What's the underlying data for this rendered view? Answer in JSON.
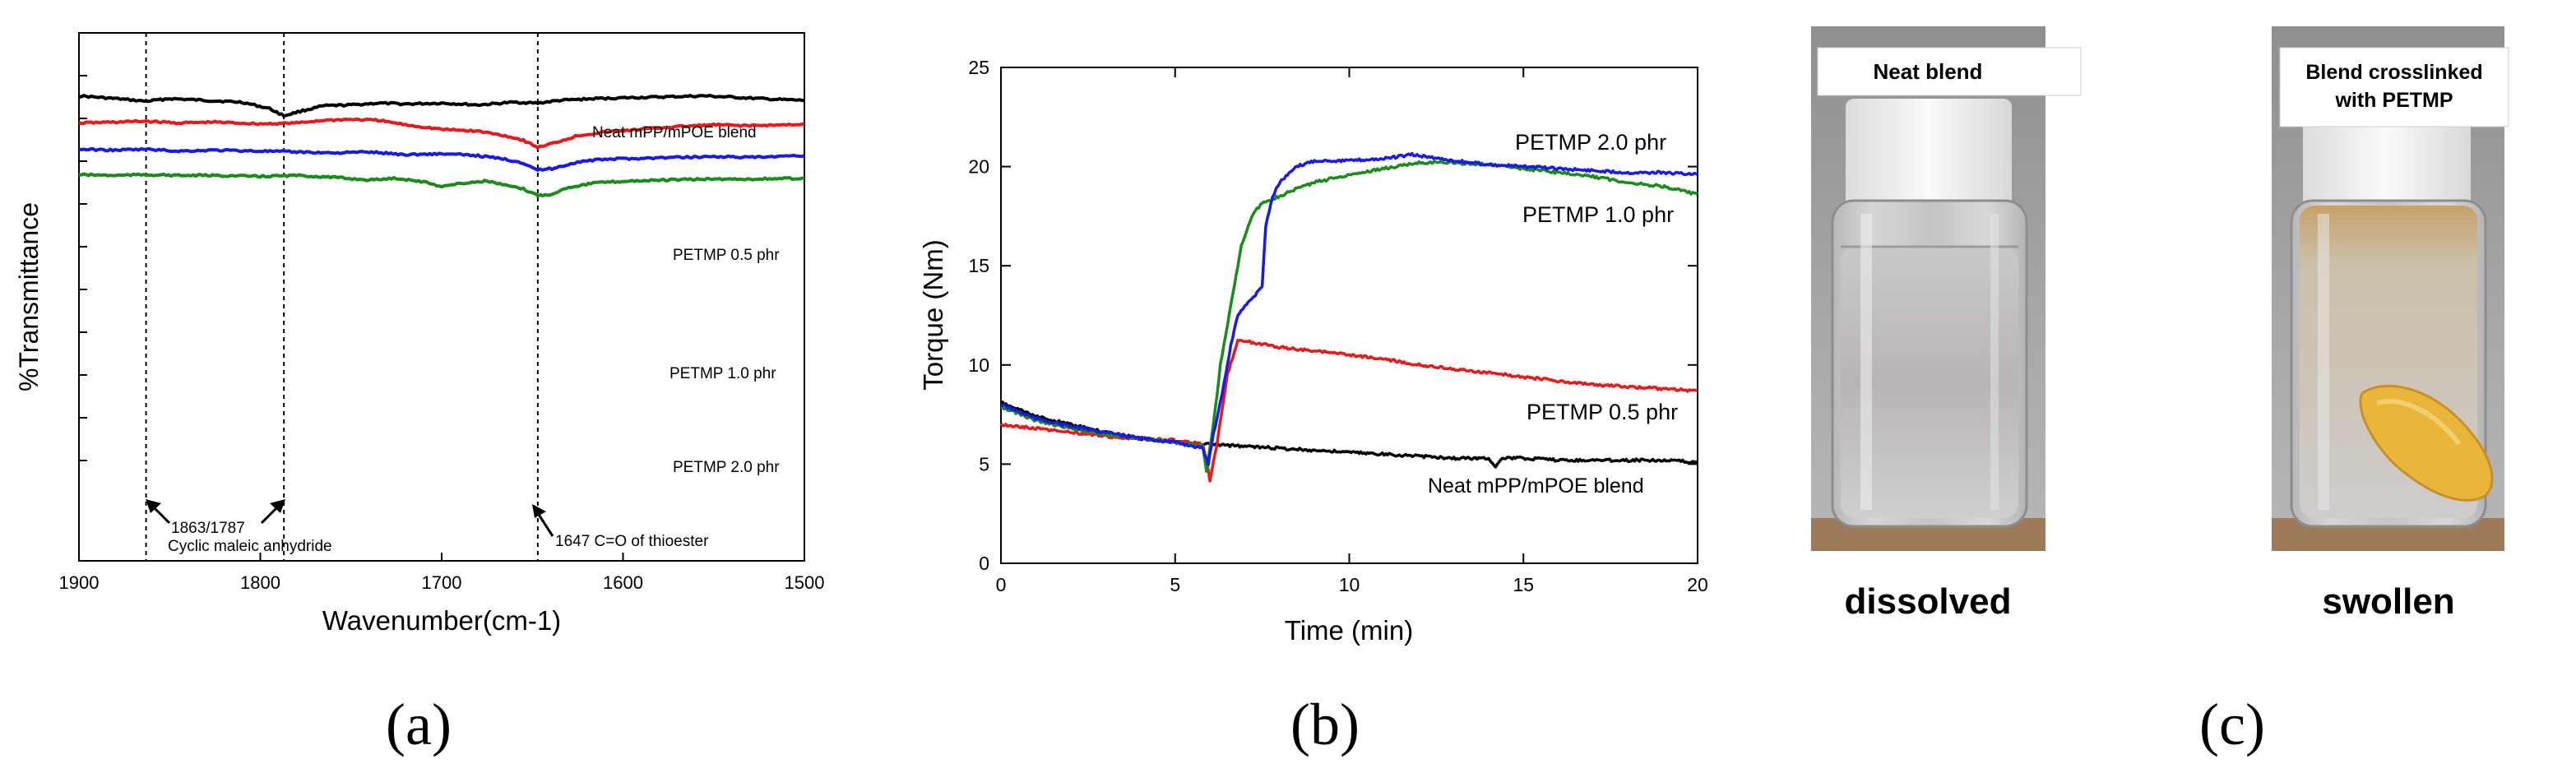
{
  "colors": {
    "black": "#000000",
    "red": "#e8191a",
    "blue": "#1a1ae8",
    "green": "#1a8c1a"
  },
  "chart_data": [
    {
      "panel": "(a)",
      "type": "line",
      "title": "",
      "xlabel": "Wavenumber(cm-1)",
      "ylabel": "%Transmittance",
      "xlim": [
        1900,
        1500
      ],
      "x_ticks": [
        "1900",
        "1800",
        "1700",
        "1600",
        "1500"
      ],
      "series": [
        {
          "name": "Neat mPP/mPOE blend",
          "color": "#000000",
          "points": [
            [
              1900,
              94
            ],
            [
              1880,
              91
            ],
            [
              1863,
              88
            ],
            [
              1850,
              91
            ],
            [
              1830,
              89
            ],
            [
              1810,
              87
            ],
            [
              1795,
              80
            ],
            [
              1787,
              72
            ],
            [
              1778,
              77
            ],
            [
              1765,
              83
            ],
            [
              1750,
              84
            ],
            [
              1735,
              86
            ],
            [
              1720,
              85
            ],
            [
              1700,
              86
            ],
            [
              1680,
              84
            ],
            [
              1660,
              87
            ],
            [
              1647,
              86
            ],
            [
              1635,
              89
            ],
            [
              1615,
              91
            ],
            [
              1595,
              92
            ],
            [
              1575,
              93
            ],
            [
              1555,
              94
            ],
            [
              1535,
              92
            ],
            [
              1515,
              90
            ],
            [
              1500,
              89
            ]
          ]
        },
        {
          "name": "PETMP 0.5 phr",
          "color": "#e8191a",
          "points": [
            [
              1900,
              64
            ],
            [
              1880,
              65
            ],
            [
              1863,
              66
            ],
            [
              1845,
              64
            ],
            [
              1825,
              65
            ],
            [
              1800,
              63
            ],
            [
              1780,
              64
            ],
            [
              1765,
              67
            ],
            [
              1750,
              68
            ],
            [
              1735,
              67
            ],
            [
              1720,
              62
            ],
            [
              1700,
              57
            ],
            [
              1680,
              55
            ],
            [
              1665,
              50
            ],
            [
              1655,
              45
            ],
            [
              1647,
              37
            ],
            [
              1638,
              42
            ],
            [
              1625,
              50
            ],
            [
              1610,
              54
            ],
            [
              1590,
              57
            ],
            [
              1570,
              60
            ],
            [
              1550,
              62
            ],
            [
              1530,
              61
            ],
            [
              1510,
              62
            ],
            [
              1500,
              63
            ]
          ]
        },
        {
          "name": "PETMP 1.0 phr",
          "color": "#1a1ae8",
          "points": [
            [
              1900,
              35
            ],
            [
              1880,
              34
            ],
            [
              1863,
              35
            ],
            [
              1845,
              33
            ],
            [
              1825,
              34
            ],
            [
              1800,
              33
            ],
            [
              1780,
              32
            ],
            [
              1760,
              31
            ],
            [
              1740,
              32
            ],
            [
              1720,
              29
            ],
            [
              1700,
              30
            ],
            [
              1680,
              28
            ],
            [
              1665,
              24
            ],
            [
              1655,
              20
            ],
            [
              1647,
              12
            ],
            [
              1638,
              14
            ],
            [
              1625,
              21
            ],
            [
              1610,
              24
            ],
            [
              1590,
              25
            ],
            [
              1570,
              26
            ],
            [
              1550,
              27
            ],
            [
              1530,
              26
            ],
            [
              1510,
              27
            ],
            [
              1500,
              28
            ]
          ]
        },
        {
          "name": "PETMP 2.0 phr",
          "color": "#1a8c1a",
          "points": [
            [
              1900,
              7
            ],
            [
              1880,
              6
            ],
            [
              1863,
              7
            ],
            [
              1845,
              6
            ],
            [
              1825,
              6
            ],
            [
              1800,
              5
            ],
            [
              1780,
              6
            ],
            [
              1760,
              4
            ],
            [
              1740,
              1
            ],
            [
              1725,
              3
            ],
            [
              1710,
              -1
            ],
            [
              1700,
              -6
            ],
            [
              1690,
              -3
            ],
            [
              1675,
              0
            ],
            [
              1665,
              -5
            ],
            [
              1655,
              -9
            ],
            [
              1647,
              -16
            ],
            [
              1640,
              -15
            ],
            [
              1630,
              -7
            ],
            [
              1615,
              -2
            ],
            [
              1595,
              0
            ],
            [
              1575,
              1
            ],
            [
              1555,
              2
            ],
            [
              1530,
              2
            ],
            [
              1500,
              3
            ]
          ]
        }
      ],
      "reference_lines": [
        1863,
        1787,
        1647
      ],
      "annotations": [
        {
          "text": "1863/1787",
          "x": 1863
        },
        {
          "text": "Cyclic maleic anhydride",
          "x": 1863
        },
        {
          "text": "1647 C=O of thioester",
          "x": 1647
        }
      ]
    },
    {
      "panel": "(b)",
      "type": "line",
      "title": "",
      "xlabel": "Time (min)",
      "ylabel": "Torque (Nm)",
      "xlim": [
        0,
        20
      ],
      "ylim": [
        0,
        25
      ],
      "x_ticks": [
        "0",
        "5",
        "10",
        "15",
        "20"
      ],
      "y_ticks": [
        "0",
        "5",
        "10",
        "15",
        "20",
        "25"
      ],
      "series": [
        {
          "name": "Neat mPP/mPOE blend",
          "color": "#000000",
          "points": [
            [
              0,
              8.1
            ],
            [
              1,
              7.4
            ],
            [
              2,
              7.0
            ],
            [
              3,
              6.6
            ],
            [
              4,
              6.3
            ],
            [
              5,
              6.1
            ],
            [
              6,
              6.0
            ],
            [
              7,
              5.9
            ],
            [
              8,
              5.8
            ],
            [
              9,
              5.7
            ],
            [
              10,
              5.6
            ],
            [
              11,
              5.5
            ],
            [
              12,
              5.4
            ],
            [
              13,
              5.3
            ],
            [
              14,
              5.3
            ],
            [
              14.2,
              4.9
            ],
            [
              14.4,
              5.3
            ],
            [
              15,
              5.3
            ],
            [
              16,
              5.2
            ],
            [
              17,
              5.2
            ],
            [
              18,
              5.2
            ],
            [
              19,
              5.2
            ],
            [
              20,
              5.1
            ]
          ]
        },
        {
          "name": "PETMP 0.5 phr",
          "color": "#e8191a",
          "points": [
            [
              0,
              7.0
            ],
            [
              1,
              6.8
            ],
            [
              2,
              6.6
            ],
            [
              3,
              6.4
            ],
            [
              4,
              6.3
            ],
            [
              5,
              6.2
            ],
            [
              5.8,
              6.0
            ],
            [
              6.0,
              4.2
            ],
            [
              6.2,
              6.0
            ],
            [
              6.5,
              9.5
            ],
            [
              6.8,
              11.2
            ],
            [
              7,
              11.2
            ],
            [
              8,
              10.9
            ],
            [
              9,
              10.7
            ],
            [
              10,
              10.5
            ],
            [
              11,
              10.3
            ],
            [
              12,
              10.0
            ],
            [
              13,
              9.8
            ],
            [
              14,
              9.6
            ],
            [
              15,
              9.4
            ],
            [
              16,
              9.2
            ],
            [
              17,
              9.0
            ],
            [
              18,
              8.9
            ],
            [
              19,
              8.8
            ],
            [
              20,
              8.7
            ]
          ]
        },
        {
          "name": "PETMP 1.0 phr",
          "color": "#1a1ae8",
          "points": [
            [
              0,
              8.0
            ],
            [
              1,
              7.3
            ],
            [
              2,
              6.9
            ],
            [
              3,
              6.6
            ],
            [
              4,
              6.3
            ],
            [
              5,
              6.1
            ],
            [
              5.8,
              5.8
            ],
            [
              5.95,
              5.0
            ],
            [
              6.1,
              6.5
            ],
            [
              6.4,
              9.0
            ],
            [
              6.6,
              11.0
            ],
            [
              6.8,
              12.5
            ],
            [
              7,
              13.0
            ],
            [
              7.3,
              13.5
            ],
            [
              7.5,
              14.0
            ],
            [
              7.6,
              17.0
            ],
            [
              7.8,
              18.5
            ],
            [
              8,
              19.2
            ],
            [
              8.5,
              20.0
            ],
            [
              9,
              20.3
            ],
            [
              10,
              20.3
            ],
            [
              11,
              20.4
            ],
            [
              11.8,
              20.6
            ],
            [
              13,
              20.3
            ],
            [
              14,
              20.1
            ],
            [
              15,
              20.0
            ],
            [
              16,
              19.9
            ],
            [
              17,
              19.8
            ],
            [
              18,
              19.7
            ],
            [
              19,
              19.7
            ],
            [
              20,
              19.6
            ]
          ]
        },
        {
          "name": "PETMP 2.0 phr",
          "color": "#1a8c1a",
          "points": [
            [
              0,
              7.9
            ],
            [
              1,
              7.2
            ],
            [
              2,
              6.8
            ],
            [
              3,
              6.5
            ],
            [
              4,
              6.3
            ],
            [
              5,
              6.1
            ],
            [
              5.8,
              5.9
            ],
            [
              5.9,
              4.7
            ],
            [
              6.1,
              7.0
            ],
            [
              6.3,
              10.0
            ],
            [
              6.6,
              13.0
            ],
            [
              6.9,
              16.0
            ],
            [
              7.2,
              17.5
            ],
            [
              7.5,
              18.2
            ],
            [
              8,
              18.5
            ],
            [
              8.5,
              18.9
            ],
            [
              9,
              19.2
            ],
            [
              10,
              19.6
            ],
            [
              11,
              19.9
            ],
            [
              12,
              20.2
            ],
            [
              13,
              20.2
            ],
            [
              14,
              20.1
            ],
            [
              15,
              19.9
            ],
            [
              16,
              19.7
            ],
            [
              17,
              19.5
            ],
            [
              18,
              19.2
            ],
            [
              19,
              19.0
            ],
            [
              20,
              18.6
            ]
          ]
        }
      ],
      "legend_labels": [
        {
          "text": "PETMP 2.0 phr",
          "color": "#1a8c1a"
        },
        {
          "text": "PETMP 1.0 phr",
          "color": "#1a1ae8"
        },
        {
          "text": "PETMP 0.5 phr",
          "color": "#e8191a"
        },
        {
          "text": "Neat mPP/mPOE blend",
          "color": "#000000"
        }
      ]
    }
  ],
  "photos": {
    "panel": "(c)",
    "left_label": "Neat blend",
    "left_caption": "dissolved",
    "right_label_line1": "Blend crosslinked",
    "right_label_line2": "with PETMP",
    "right_caption": "swollen"
  }
}
